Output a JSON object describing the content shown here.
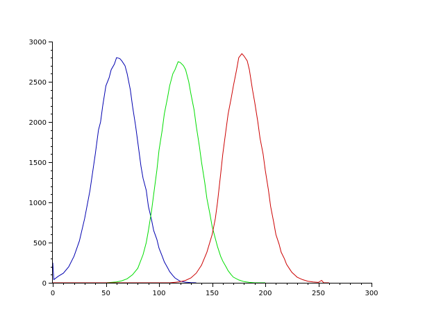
{
  "chart_data": {
    "type": "line",
    "xlim": [
      0,
      300
    ],
    "ylim": [
      0,
      3000
    ],
    "x_ticks": [
      0,
      50,
      100,
      150,
      200,
      250,
      300
    ],
    "y_ticks": [
      0,
      500,
      1000,
      1500,
      2000,
      2500,
      3000
    ],
    "x_minor_step": 10,
    "y_minor_step": 100,
    "grid": false,
    "legend": "none",
    "series": [
      {
        "color": "#0000b0",
        "points": [
          [
            0,
            250
          ],
          [
            1,
            40
          ],
          [
            5,
            80
          ],
          [
            10,
            120
          ],
          [
            15,
            200
          ],
          [
            20,
            330
          ],
          [
            25,
            520
          ],
          [
            30,
            800
          ],
          [
            35,
            1150
          ],
          [
            40,
            1600
          ],
          [
            43,
            1900
          ],
          [
            45,
            2000
          ],
          [
            47,
            2200
          ],
          [
            50,
            2450
          ],
          [
            53,
            2550
          ],
          [
            55,
            2650
          ],
          [
            58,
            2720
          ],
          [
            60,
            2800
          ],
          [
            63,
            2790
          ],
          [
            65,
            2760
          ],
          [
            68,
            2700
          ],
          [
            70,
            2600
          ],
          [
            73,
            2400
          ],
          [
            75,
            2200
          ],
          [
            78,
            1950
          ],
          [
            80,
            1750
          ],
          [
            83,
            1450
          ],
          [
            85,
            1300
          ],
          [
            88,
            1150
          ],
          [
            90,
            950
          ],
          [
            93,
            780
          ],
          [
            95,
            650
          ],
          [
            98,
            540
          ],
          [
            100,
            430
          ],
          [
            103,
            330
          ],
          [
            105,
            260
          ],
          [
            108,
            190
          ],
          [
            110,
            140
          ],
          [
            113,
            90
          ],
          [
            115,
            60
          ],
          [
            118,
            35
          ],
          [
            120,
            20
          ],
          [
            125,
            8
          ],
          [
            130,
            3
          ],
          [
            135,
            0
          ]
        ]
      },
      {
        "color": "#00dd00",
        "points": [
          [
            0,
            0
          ],
          [
            30,
            0
          ],
          [
            50,
            0
          ],
          [
            55,
            5
          ],
          [
            60,
            10
          ],
          [
            65,
            25
          ],
          [
            70,
            50
          ],
          [
            75,
            100
          ],
          [
            80,
            180
          ],
          [
            85,
            350
          ],
          [
            88,
            500
          ],
          [
            90,
            650
          ],
          [
            93,
            900
          ],
          [
            95,
            1100
          ],
          [
            98,
            1400
          ],
          [
            100,
            1650
          ],
          [
            103,
            1900
          ],
          [
            105,
            2100
          ],
          [
            108,
            2300
          ],
          [
            110,
            2450
          ],
          [
            113,
            2600
          ],
          [
            115,
            2650
          ],
          [
            118,
            2750
          ],
          [
            120,
            2740
          ],
          [
            123,
            2700
          ],
          [
            125,
            2650
          ],
          [
            128,
            2500
          ],
          [
            130,
            2350
          ],
          [
            133,
            2150
          ],
          [
            135,
            1950
          ],
          [
            138,
            1700
          ],
          [
            140,
            1500
          ],
          [
            143,
            1250
          ],
          [
            145,
            1050
          ],
          [
            148,
            850
          ],
          [
            150,
            700
          ],
          [
            153,
            550
          ],
          [
            155,
            450
          ],
          [
            158,
            330
          ],
          [
            160,
            270
          ],
          [
            163,
            200
          ],
          [
            165,
            150
          ],
          [
            168,
            100
          ],
          [
            170,
            70
          ],
          [
            175,
            35
          ],
          [
            180,
            15
          ],
          [
            185,
            5
          ],
          [
            190,
            0
          ],
          [
            200,
            0
          ]
        ]
      },
      {
        "color": "#cc0000",
        "points": [
          [
            0,
            0
          ],
          [
            100,
            0
          ],
          [
            110,
            0
          ],
          [
            118,
            10
          ],
          [
            120,
            15
          ],
          [
            125,
            30
          ],
          [
            130,
            60
          ],
          [
            135,
            120
          ],
          [
            140,
            220
          ],
          [
            145,
            380
          ],
          [
            150,
            600
          ],
          [
            153,
            800
          ],
          [
            155,
            1000
          ],
          [
            158,
            1350
          ],
          [
            160,
            1600
          ],
          [
            163,
            1900
          ],
          [
            165,
            2100
          ],
          [
            168,
            2300
          ],
          [
            170,
            2450
          ],
          [
            173,
            2650
          ],
          [
            175,
            2800
          ],
          [
            178,
            2850
          ],
          [
            180,
            2820
          ],
          [
            183,
            2760
          ],
          [
            185,
            2650
          ],
          [
            188,
            2400
          ],
          [
            190,
            2250
          ],
          [
            193,
            2000
          ],
          [
            195,
            1800
          ],
          [
            198,
            1600
          ],
          [
            200,
            1400
          ],
          [
            203,
            1150
          ],
          [
            205,
            950
          ],
          [
            208,
            750
          ],
          [
            210,
            600
          ],
          [
            213,
            480
          ],
          [
            215,
            380
          ],
          [
            218,
            300
          ],
          [
            220,
            230
          ],
          [
            223,
            170
          ],
          [
            225,
            130
          ],
          [
            228,
            95
          ],
          [
            230,
            70
          ],
          [
            235,
            40
          ],
          [
            240,
            20
          ],
          [
            245,
            10
          ],
          [
            250,
            5
          ],
          [
            253,
            30
          ],
          [
            255,
            0
          ],
          [
            260,
            0
          ]
        ]
      }
    ]
  }
}
